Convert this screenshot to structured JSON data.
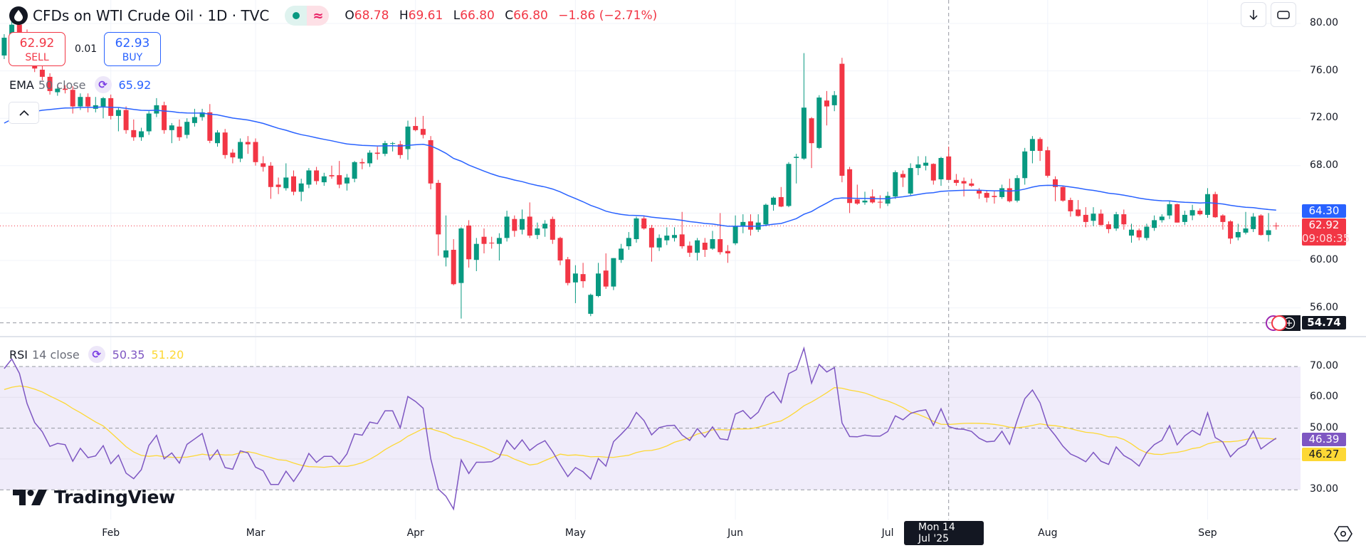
{
  "header": {
    "title": "CFDs on WTI Crude Oil · 1D · TVC",
    "logo_icon": "oil-drop-icon",
    "status_icons": [
      "market-open-dot-icon",
      "delayed-data-approx-icon"
    ],
    "ohlc": {
      "o_label": "O",
      "o": "68.78",
      "h_label": "H",
      "h": "69.61",
      "l_label": "L",
      "l": "66.80",
      "c_label": "C",
      "c": "66.80",
      "change": "−1.86 (−2.71%)"
    }
  },
  "trade": {
    "sell_price": "62.92",
    "sell_label": "SELL",
    "spread": "0.01",
    "buy_price": "62.93",
    "buy_label": "BUY"
  },
  "ema_legend": {
    "name": "EMA",
    "params": "50 close",
    "value": "65.92"
  },
  "rsi_legend": {
    "name": "RSI",
    "params": "14 close",
    "value": "50.35",
    "ma_value": "51.20"
  },
  "toolbar": {
    "download_icon": "arrow-down-icon",
    "fullscreen_icon": "fullscreen-icon",
    "collapse_icon": "chevron-up-icon",
    "settings_icon": "settings-icon",
    "add_icon": "plus-circle-icon"
  },
  "price_axis": {
    "ticks": [
      "80.00",
      "76.00",
      "72.00",
      "68.00",
      "60.00",
      "56.00"
    ],
    "ema_label": "64.30",
    "last_label": "62.92",
    "countdown": "09:08:35",
    "crosshair_label": "54.74"
  },
  "rsi_axis": {
    "ticks": [
      "70.00",
      "60.00",
      "50.00",
      "30.00"
    ],
    "rsi_label": "46.39",
    "ma_label": "46.27"
  },
  "time_axis": {
    "ticks": [
      {
        "label": "Feb",
        "bar": 14
      },
      {
        "label": "Mar",
        "bar": 33
      },
      {
        "label": "Apr",
        "bar": 54
      },
      {
        "label": "May",
        "bar": 75
      },
      {
        "label": "Jun",
        "bar": 96
      },
      {
        "label": "Jul",
        "bar": 116
      },
      {
        "label": "Aug",
        "bar": 137
      },
      {
        "label": "Sep",
        "bar": 158
      }
    ],
    "crosshair_label": "Mon 14 Jul '25"
  },
  "brand": "TradingView",
  "colors": {
    "up": "#089981",
    "down": "#f23645",
    "ema": "#2962ff",
    "rsi": "#7e57c2",
    "rsi_ma": "#fdd835",
    "rsi_band": "#f0ecfa"
  },
  "chart_data": {
    "type": "candlestick",
    "price_range": [
      54,
      81
    ],
    "rsi_range": [
      25,
      78
    ],
    "rsi_levels": [
      70,
      50,
      30
    ],
    "crosshair_bar": 124,
    "crosshair_price": 54.74,
    "last_price": 62.92,
    "indicators": [
      "EMA 50 close",
      "RSI 14 close"
    ],
    "candles_ohlc": [
      [
        77.3,
        79.1,
        77.0,
        78.8
      ],
      [
        78.8,
        80.2,
        78.5,
        79.9
      ],
      [
        79.9,
        80.3,
        78.9,
        79.2
      ],
      [
        79.2,
        79.5,
        77.2,
        77.5
      ],
      [
        77.5,
        77.8,
        75.9,
        76.2
      ],
      [
        76.1,
        76.4,
        75.2,
        75.5
      ],
      [
        75.5,
        75.8,
        74.0,
        74.3
      ],
      [
        74.2,
        74.8,
        73.9,
        74.5
      ],
      [
        74.5,
        74.8,
        74.1,
        74.4
      ],
      [
        74.4,
        74.7,
        72.4,
        73.0
      ],
      [
        73.0,
        74.1,
        72.7,
        73.8
      ],
      [
        73.8,
        74.1,
        72.5,
        73.0
      ],
      [
        72.8,
        73.8,
        72.5,
        73.1
      ],
      [
        73.0,
        73.8,
        72.0,
        73.7
      ],
      [
        73.7,
        74.0,
        71.9,
        72.2
      ],
      [
        72.2,
        72.9,
        70.9,
        72.7
      ],
      [
        72.7,
        73.0,
        70.7,
        71.0
      ],
      [
        71.0,
        71.9,
        70.1,
        70.4
      ],
      [
        70.4,
        71.2,
        70.1,
        70.9
      ],
      [
        70.9,
        72.6,
        70.6,
        72.4
      ],
      [
        72.4,
        73.7,
        72.1,
        73.1
      ],
      [
        73.1,
        73.4,
        70.7,
        71.0
      ],
      [
        71.0,
        71.6,
        69.9,
        71.4
      ],
      [
        71.3,
        71.9,
        70.1,
        70.4
      ],
      [
        70.6,
        72.0,
        70.3,
        71.7
      ],
      [
        71.6,
        72.8,
        71.3,
        72.1
      ],
      [
        72.1,
        72.8,
        71.8,
        72.5
      ],
      [
        72.5,
        73.2,
        69.9,
        70.1
      ],
      [
        69.9,
        71.0,
        69.6,
        70.8
      ],
      [
        70.8,
        71.1,
        68.6,
        68.9
      ],
      [
        69.1,
        69.4,
        68.2,
        68.7
      ],
      [
        68.6,
        70.3,
        68.3,
        70.0
      ],
      [
        70.0,
        70.5,
        69.0,
        69.8
      ],
      [
        70.0,
        70.3,
        68.0,
        68.3
      ],
      [
        68.2,
        68.8,
        67.5,
        67.9
      ],
      [
        68.0,
        68.3,
        65.2,
        66.2
      ],
      [
        66.4,
        67.0,
        65.6,
        66.2
      ],
      [
        66.1,
        68.2,
        65.9,
        67.0
      ],
      [
        67.1,
        67.6,
        65.5,
        65.8
      ],
      [
        65.8,
        66.9,
        65.0,
        66.5
      ],
      [
        66.4,
        67.8,
        66.1,
        67.6
      ],
      [
        67.6,
        67.9,
        66.4,
        66.7
      ],
      [
        66.6,
        67.4,
        66.3,
        67.1
      ],
      [
        67.2,
        68.0,
        66.9,
        67.1
      ],
      [
        67.2,
        68.4,
        66.1,
        66.4
      ],
      [
        66.5,
        67.3,
        65.9,
        67.0
      ],
      [
        66.9,
        68.4,
        66.6,
        68.3
      ],
      [
        68.3,
        68.6,
        67.7,
        68.2
      ],
      [
        68.2,
        69.3,
        67.9,
        69.1
      ],
      [
        69.1,
        69.6,
        68.5,
        69.0
      ],
      [
        69.0,
        70.1,
        68.8,
        69.9
      ],
      [
        69.85,
        70.0,
        69.2,
        69.9
      ],
      [
        69.8,
        70.1,
        68.6,
        68.9
      ],
      [
        69.4,
        71.8,
        68.5,
        71.3
      ],
      [
        71.35,
        72.1,
        70.9,
        71.0
      ],
      [
        71.1,
        72.2,
        70.3,
        70.6
      ],
      [
        70.15,
        70.5,
        66.0,
        66.5
      ],
      [
        66.55,
        66.8,
        60.4,
        62.2
      ],
      [
        60.25,
        63.8,
        59.5,
        60.85
      ],
      [
        60.9,
        61.8,
        57.9,
        58.0
      ],
      [
        58.1,
        62.8,
        55.1,
        62.7
      ],
      [
        62.95,
        63.4,
        59.4,
        60.1
      ],
      [
        60.05,
        61.9,
        59.1,
        61.4
      ],
      [
        62.0,
        62.7,
        60.6,
        61.4
      ],
      [
        61.5,
        62.0,
        61.0,
        61.45
      ],
      [
        61.4,
        62.3,
        60.0,
        61.9
      ],
      [
        61.9,
        64.2,
        61.6,
        63.7
      ],
      [
        63.5,
        63.8,
        62.0,
        62.5
      ],
      [
        62.6,
        64.3,
        62.2,
        63.5
      ],
      [
        63.7,
        64.9,
        61.9,
        62.1
      ],
      [
        62.15,
        63.2,
        61.8,
        62.7
      ],
      [
        62.7,
        63.4,
        62.0,
        63.1
      ],
      [
        63.5,
        63.7,
        61.4,
        61.75
      ],
      [
        61.9,
        62.0,
        59.6,
        60.0
      ],
      [
        60.1,
        60.3,
        57.9,
        58.1
      ],
      [
        58.15,
        59.6,
        56.4,
        58.9
      ],
      [
        58.85,
        59.8,
        57.7,
        58.25
      ],
      [
        55.5,
        57.2,
        55.3,
        57.1
      ],
      [
        57.0,
        59.8,
        56.9,
        58.9
      ],
      [
        59.15,
        60.6,
        57.6,
        57.8
      ],
      [
        57.8,
        60.2,
        57.5,
        60.2
      ],
      [
        60.05,
        61.4,
        59.8,
        61.0
      ],
      [
        61.2,
        62.4,
        60.9,
        61.9
      ],
      [
        61.8,
        63.7,
        61.5,
        63.55
      ],
      [
        63.55,
        63.8,
        62.6,
        62.7
      ],
      [
        62.75,
        63.0,
        59.9,
        61.1
      ],
      [
        61.1,
        62.2,
        60.8,
        61.9
      ],
      [
        61.7,
        62.8,
        61.3,
        62.1
      ],
      [
        61.9,
        62.8,
        61.6,
        62.15
      ],
      [
        62.2,
        64.1,
        61.0,
        61.2
      ],
      [
        61.25,
        61.6,
        60.3,
        60.65
      ],
      [
        60.65,
        61.9,
        60.0,
        61.7
      ],
      [
        61.5,
        61.9,
        60.3,
        60.9
      ],
      [
        61.0,
        62.5,
        60.9,
        61.8
      ],
      [
        61.8,
        64.0,
        60.5,
        60.7
      ],
      [
        60.8,
        61.3,
        59.8,
        60.6
      ],
      [
        61.45,
        63.8,
        61.3,
        62.9
      ],
      [
        62.9,
        63.9,
        62.3,
        63.25
      ],
      [
        63.3,
        63.9,
        62.1,
        62.6
      ],
      [
        62.6,
        63.9,
        62.4,
        63.2
      ],
      [
        63.05,
        64.8,
        62.9,
        64.7
      ],
      [
        64.7,
        65.4,
        64.2,
        65.3
      ],
      [
        65.35,
        66.2,
        64.5,
        64.55
      ],
      [
        64.6,
        68.3,
        64.5,
        68.15
      ],
      [
        68.65,
        69.0,
        66.5,
        68.75
      ],
      [
        68.6,
        77.5,
        68.5,
        72.9
      ],
      [
        72.0,
        72.1,
        67.8,
        69.9
      ],
      [
        69.5,
        73.95,
        69.4,
        73.75
      ],
      [
        73.5,
        74.3,
        71.4,
        73.0
      ],
      [
        73.1,
        74.3,
        72.6,
        73.95
      ],
      [
        76.6,
        77.1,
        66.6,
        67.15
      ],
      [
        67.7,
        67.9,
        64.0,
        64.85
      ],
      [
        65.15,
        66.4,
        64.7,
        64.8
      ],
      [
        64.9,
        65.8,
        64.7,
        65.05
      ],
      [
        65.4,
        66.0,
        64.8,
        64.9
      ],
      [
        64.95,
        65.5,
        64.4,
        64.9
      ],
      [
        64.8,
        65.8,
        64.6,
        65.45
      ],
      [
        65.4,
        67.6,
        65.2,
        67.45
      ],
      [
        67.3,
        67.6,
        66.2,
        67.0
      ],
      [
        65.65,
        68.2,
        65.5,
        67.8
      ],
      [
        67.8,
        68.8,
        67.2,
        68.1
      ],
      [
        68.0,
        68.8,
        67.6,
        68.25
      ],
      [
        68.15,
        68.2,
        66.4,
        66.75
      ],
      [
        66.85,
        68.75,
        66.3,
        68.65
      ],
      [
        68.78,
        69.61,
        66.8,
        66.8
      ],
      [
        66.8,
        67.3,
        66.3,
        66.55
      ],
      [
        66.7,
        67.0,
        65.4,
        66.5
      ],
      [
        66.5,
        66.9,
        66.2,
        66.3
      ],
      [
        65.95,
        66.1,
        65.2,
        65.65
      ],
      [
        65.7,
        65.9,
        64.9,
        65.3
      ],
      [
        65.45,
        65.9,
        64.8,
        65.35
      ],
      [
        65.35,
        66.4,
        65.2,
        66.1
      ],
      [
        66.1,
        66.9,
        64.9,
        65.0
      ],
      [
        65.05,
        67.2,
        64.9,
        66.95
      ],
      [
        66.95,
        69.5,
        66.4,
        69.2
      ],
      [
        69.25,
        70.5,
        68.2,
        70.25
      ],
      [
        70.25,
        70.4,
        68.4,
        69.25
      ],
      [
        69.3,
        69.6,
        67.0,
        67.15
      ],
      [
        66.85,
        67.1,
        65.0,
        66.2
      ],
      [
        66.2,
        66.3,
        64.95,
        65.05
      ],
      [
        65.1,
        65.3,
        63.7,
        64.15
      ],
      [
        64.3,
        65.1,
        63.7,
        63.75
      ],
      [
        63.85,
        64.5,
        62.8,
        63.25
      ],
      [
        63.35,
        64.5,
        62.9,
        63.95
      ],
      [
        63.95,
        64.3,
        62.9,
        63.0
      ],
      [
        63.05,
        63.3,
        62.3,
        62.65
      ],
      [
        62.7,
        64.1,
        62.5,
        63.9
      ],
      [
        63.9,
        64.3,
        62.6,
        63.05
      ],
      [
        62.1,
        63.1,
        61.5,
        62.6
      ],
      [
        62.55,
        62.7,
        61.7,
        61.95
      ],
      [
        61.9,
        63.1,
        61.7,
        62.85
      ],
      [
        62.75,
        63.8,
        62.5,
        63.4
      ],
      [
        63.4,
        63.9,
        63.2,
        63.7
      ],
      [
        63.8,
        65.0,
        63.5,
        64.75
      ],
      [
        64.75,
        64.8,
        63.2,
        63.2
      ],
      [
        63.25,
        64.2,
        63.0,
        63.85
      ],
      [
        63.8,
        64.7,
        63.4,
        64.25
      ],
      [
        64.2,
        64.4,
        63.8,
        63.9
      ],
      [
        63.85,
        66.1,
        63.6,
        65.6
      ],
      [
        65.6,
        65.8,
        63.6,
        63.65
      ],
      [
        63.8,
        63.9,
        62.6,
        63.25
      ],
      [
        63.3,
        63.4,
        61.4,
        61.85
      ],
      [
        61.95,
        63.1,
        61.7,
        62.4
      ],
      [
        62.35,
        64.1,
        62.2,
        62.7
      ],
      [
        62.65,
        64.0,
        62.4,
        63.7
      ],
      [
        63.8,
        63.9,
        62.1,
        62.15
      ],
      [
        62.15,
        64.0,
        61.6,
        62.55
      ],
      [
        62.95,
        63.2,
        62.6,
        62.92
      ]
    ]
  }
}
